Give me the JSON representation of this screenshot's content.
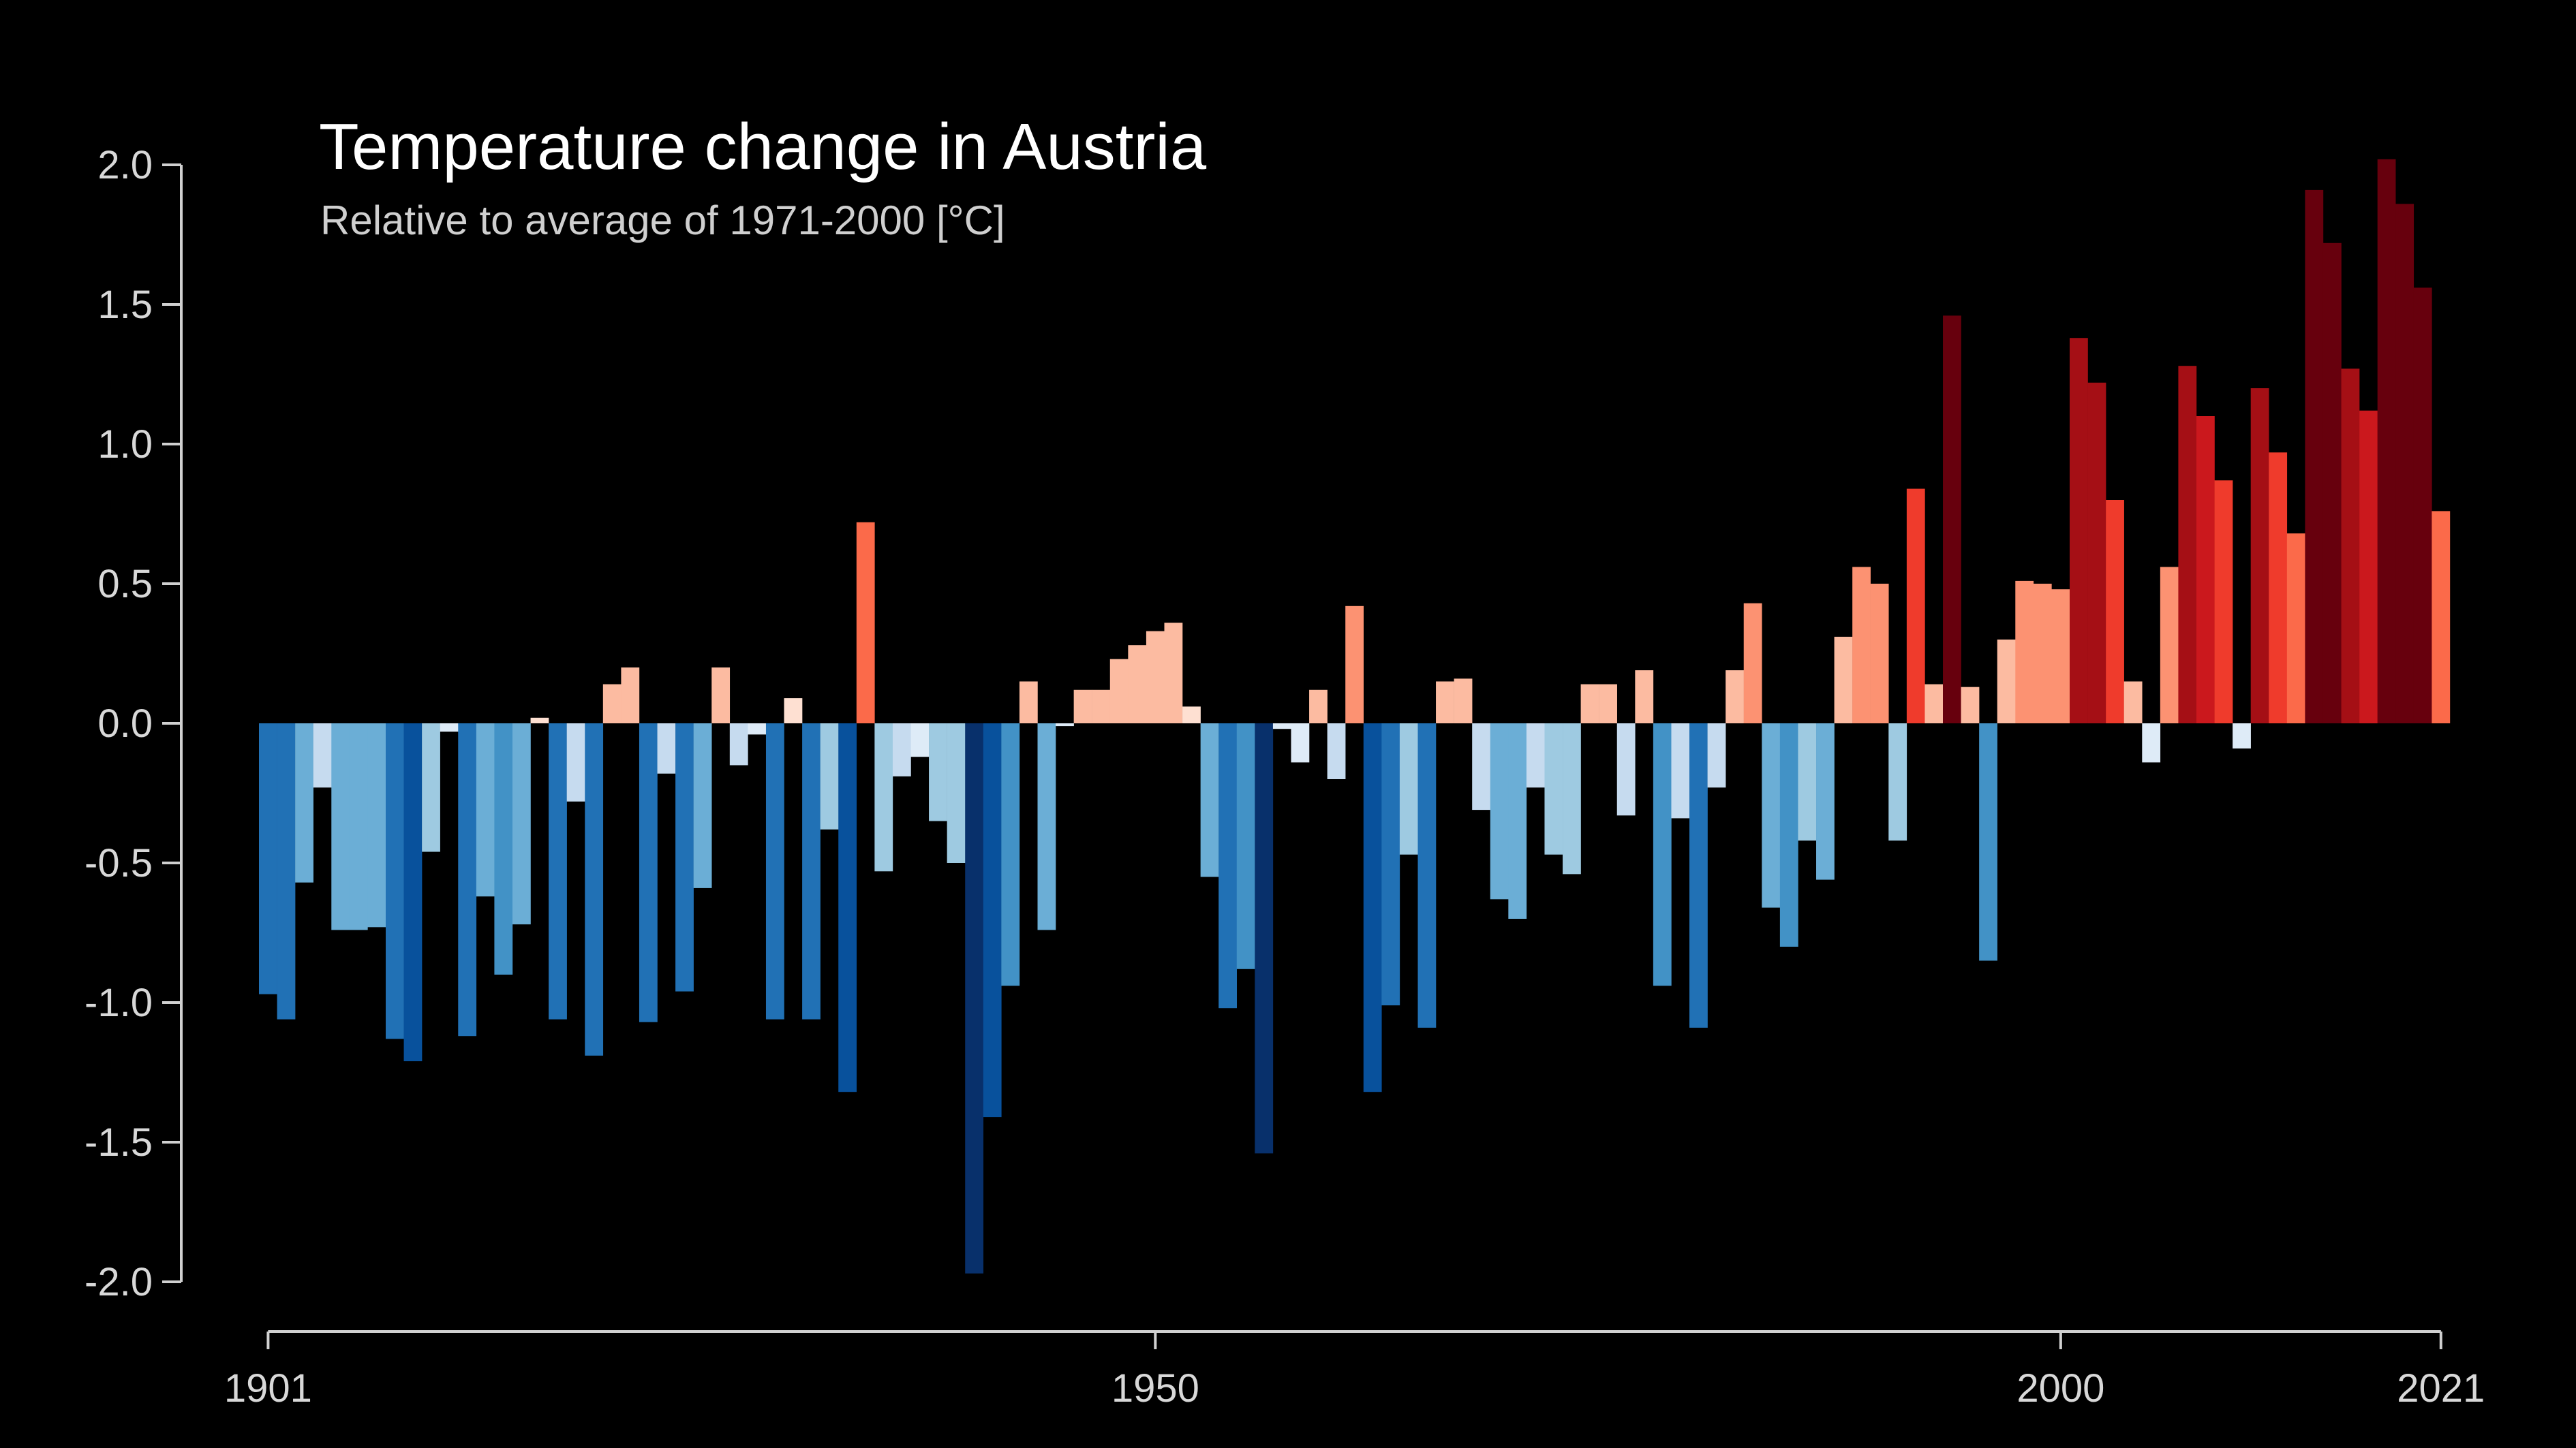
{
  "chart_data": {
    "type": "bar",
    "title": "Temperature change in Austria",
    "subtitle": "Relative to average of 1971-2000  [°C]",
    "xlabel": "",
    "ylabel": "",
    "ylim": [
      -2.0,
      2.0
    ],
    "xlim": [
      1901,
      2021
    ],
    "y_ticks": [
      "2.0",
      "1.5",
      "1.0",
      "0.5",
      "0.0",
      "-0.5",
      "-1.0",
      "-1.5",
      "-2.0"
    ],
    "x_ticks": [
      "1901",
      "1950",
      "2000",
      "2021"
    ],
    "grid": false,
    "legend": "none",
    "colors": {
      "background": "#000000",
      "axis": "#d0d0d0",
      "cold_scale": [
        "#08306b",
        "#08519c",
        "#2171b5",
        "#4292c6",
        "#6baed6",
        "#9ecae1",
        "#c6dbef",
        "#deebf7"
      ],
      "warm_scale": [
        "#fee0d2",
        "#fcbba1",
        "#fc9272",
        "#fb6a4a",
        "#ef3b2c",
        "#cb181d",
        "#a50f15",
        "#67000d"
      ]
    },
    "series": [
      {
        "x": [
          1901,
          1902,
          1903,
          1904,
          1905,
          1906,
          1907,
          1908,
          1909,
          1910,
          1911,
          1912,
          1913,
          1914,
          1915,
          1916,
          1917,
          1918,
          1919,
          1920,
          1921,
          1922,
          1923,
          1924,
          1925,
          1926,
          1927,
          1928,
          1929,
          1930,
          1931,
          1932,
          1933,
          1934,
          1935,
          1936,
          1937,
          1938,
          1939,
          1940,
          1941,
          1942,
          1943,
          1944,
          1945,
          1946,
          1947,
          1948,
          1949,
          1950,
          1951,
          1952,
          1953,
          1954,
          1955,
          1956,
          1957,
          1958,
          1959,
          1960,
          1961,
          1962,
          1963,
          1964,
          1965,
          1966,
          1967,
          1968,
          1969,
          1970,
          1971,
          1972,
          1973,
          1974,
          1975,
          1976,
          1977,
          1978,
          1979,
          1980,
          1981,
          1982,
          1983,
          1984,
          1985,
          1986,
          1987,
          1988,
          1989,
          1990,
          1991,
          1992,
          1993,
          1994,
          1995,
          1996,
          1997,
          1998,
          1999,
          2000,
          2001,
          2002,
          2003,
          2004,
          2005,
          2006,
          2007,
          2008,
          2009,
          2010,
          2011,
          2012,
          2013,
          2014,
          2015,
          2016,
          2017,
          2018,
          2019,
          2020,
          2021
        ],
        "values": [
          -0.97,
          -1.06,
          -0.57,
          -0.23,
          -0.74,
          -0.74,
          -0.73,
          -1.13,
          -1.21,
          -0.46,
          -0.03,
          -1.12,
          -0.62,
          -0.9,
          -0.72,
          0.02,
          -1.06,
          -0.28,
          -1.19,
          0.14,
          0.2,
          -1.07,
          -0.18,
          -0.96,
          -0.59,
          0.2,
          -0.15,
          -0.04,
          -1.06,
          0.09,
          -1.06,
          -0.38,
          -1.32,
          0.72,
          -0.53,
          -0.19,
          -0.12,
          -0.35,
          -0.5,
          -1.97,
          -1.41,
          -0.94,
          0.15,
          -0.74,
          -0.01,
          0.12,
          0.12,
          0.23,
          0.28,
          0.33,
          0.36,
          0.06,
          -0.55,
          -1.02,
          -0.88,
          -1.54,
          -0.02,
          -0.14,
          0.12,
          -0.2,
          0.42,
          -1.32,
          -1.01,
          -0.47,
          -1.09,
          0.15,
          0.16,
          -0.31,
          -0.63,
          -0.7,
          -0.23,
          -0.47,
          -0.54,
          0.14,
          0.14,
          -0.33,
          0.19,
          -0.94,
          -0.34,
          -1.09,
          -0.23,
          0.19,
          0.43,
          -0.66,
          -0.8,
          -0.42,
          -0.56,
          0.31,
          0.56,
          0.5,
          -0.42,
          0.84,
          0.14,
          1.46,
          0.13,
          -0.85,
          0.3,
          0.51,
          0.5,
          0.48,
          1.38,
          1.22,
          0.8,
          0.15,
          -0.14,
          0.56,
          1.28,
          1.1,
          0.87,
          -0.09,
          1.2,
          0.97,
          0.68,
          1.91,
          1.72,
          1.27,
          1.12,
          2.02,
          1.86,
          1.56,
          0.76
        ]
      }
    ]
  }
}
